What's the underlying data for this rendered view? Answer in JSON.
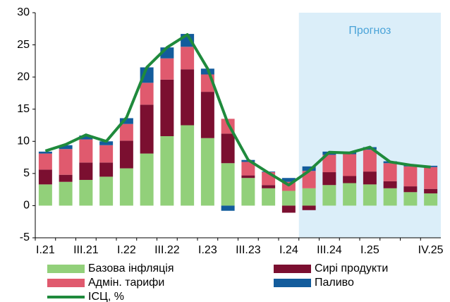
{
  "chart_data": {
    "type": "stacked_bar_line",
    "annotation": "Прогноз",
    "categories": [
      "I.21",
      null,
      "III.21",
      null,
      "I.22",
      null,
      "III.22",
      null,
      "I.23",
      null,
      "III.23",
      null,
      "I.24",
      null,
      "III.24",
      null,
      "I.25",
      null,
      null,
      "IV.25"
    ],
    "series": [
      {
        "name": "Базова інфляція",
        "color": "#92d07a",
        "values": [
          3.3,
          3.7,
          4.0,
          4.5,
          5.8,
          8.1,
          10.8,
          12.5,
          10.5,
          6.6,
          4.3,
          2.7,
          2.3,
          2.7,
          3.2,
          3.5,
          3.3,
          2.7,
          2.1,
          1.9
        ]
      },
      {
        "name": "Сирі продукти",
        "color": "#7b0f30",
        "values": [
          2.3,
          1.1,
          2.7,
          2.2,
          4.3,
          7.6,
          8.8,
          8.7,
          7.2,
          4.6,
          0.4,
          0.5,
          -1.1,
          -0.7,
          2.0,
          1.1,
          2.0,
          1.1,
          0.9,
          0.7
        ]
      },
      {
        "name": "Адмін. тарифи",
        "color": "#e05a6e",
        "values": [
          2.5,
          4.0,
          3.6,
          2.7,
          2.6,
          3.4,
          3.3,
          3.5,
          2.7,
          2.3,
          2.1,
          2.0,
          1.4,
          2.7,
          2.7,
          3.4,
          3.4,
          2.8,
          3.1,
          3.4
        ]
      },
      {
        "name": "Паливо",
        "color": "#135c9c",
        "values": [
          0.3,
          0.6,
          0.6,
          0.6,
          0.9,
          2.4,
          1.7,
          2.0,
          0.9,
          -0.8,
          0.3,
          0.1,
          0.6,
          0.7,
          0.5,
          0.4,
          0.4,
          0.3,
          0.2,
          0.2
        ]
      },
      {
        "name": "ІСЦ, %",
        "color": "#1f8a3c",
        "type": "line",
        "values": [
          8.5,
          9.5,
          11.0,
          10.0,
          13.7,
          21.5,
          24.6,
          26.6,
          21.3,
          12.8,
          7.1,
          5.1,
          3.2,
          5.4,
          8.3,
          8.2,
          9.1,
          6.8,
          6.3,
          6.0
        ]
      }
    ],
    "ylim": [
      -5,
      30
    ],
    "yticks": [
      -5,
      0,
      5,
      10,
      15,
      20,
      25,
      30
    ]
  }
}
